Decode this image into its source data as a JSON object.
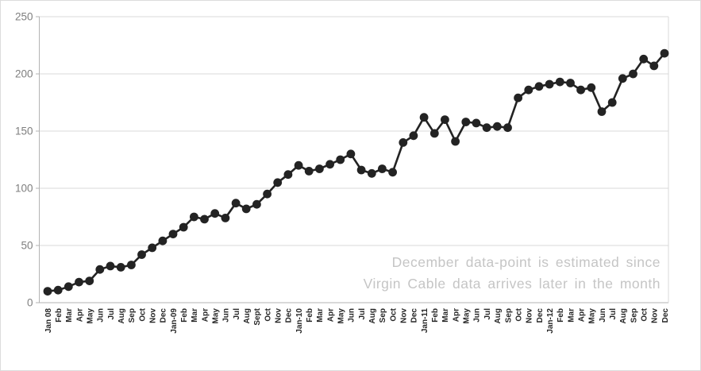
{
  "chart_data": {
    "type": "line",
    "title": "",
    "xlabel": "",
    "ylabel": "",
    "categories": [
      "Jan 08",
      "Feb",
      "Mar",
      "Apr",
      "May",
      "Jun",
      "Jul",
      "Aug",
      "Sep",
      "Oct",
      "Nov",
      "Dec",
      "Jan-09",
      "Feb",
      "Mar",
      "Apr",
      "May",
      "Jun",
      "Jul",
      "Aug",
      "Sept",
      "Oct",
      "Nov",
      "Dec",
      "Jan-10",
      "Feb",
      "Mar",
      "Apr",
      "May",
      "Jun",
      "Jul",
      "Aug",
      "Sep",
      "Oct",
      "Nov",
      "Dec",
      "Jan-11",
      "Feb",
      "Mar",
      "Apr",
      "May",
      "Jun",
      "Jul",
      "Aug",
      "Sep",
      "Oct",
      "Nov",
      "Dec",
      "Jan-12",
      "Feb",
      "Mar",
      "Apr",
      "May",
      "Jun",
      "Jul",
      "Aug",
      "Sep",
      "Oct",
      "Nov",
      "Dec"
    ],
    "values": [
      10,
      11,
      14,
      18,
      19,
      29,
      32,
      31,
      33,
      42,
      48,
      54,
      60,
      66,
      75,
      73,
      78,
      74,
      87,
      82,
      86,
      95,
      105,
      112,
      120,
      115,
      117,
      121,
      125,
      130,
      116,
      113,
      117,
      114,
      140,
      146,
      162,
      148,
      160,
      141,
      158,
      157,
      153,
      154,
      153,
      179,
      186,
      189,
      191,
      193,
      192,
      186,
      188,
      167,
      175,
      196,
      200,
      213,
      207,
      218
    ],
    "ylim": [
      0,
      250
    ],
    "yticks": [
      0,
      50,
      100,
      150,
      200,
      250
    ],
    "grid": "horizontal",
    "legend": "none",
    "marker": "filled-circle",
    "colors": {
      "series": "#232323",
      "gridline": "#d9d9d9",
      "axis": "#b3b3b3",
      "y_labels": "#7f7f7f",
      "x_labels": "#262626",
      "annotation": "#c5c5c5"
    }
  },
  "annotation": {
    "line1": "December data-point is estimated since",
    "line2": "Virgin Cable data arrives later in the month"
  }
}
